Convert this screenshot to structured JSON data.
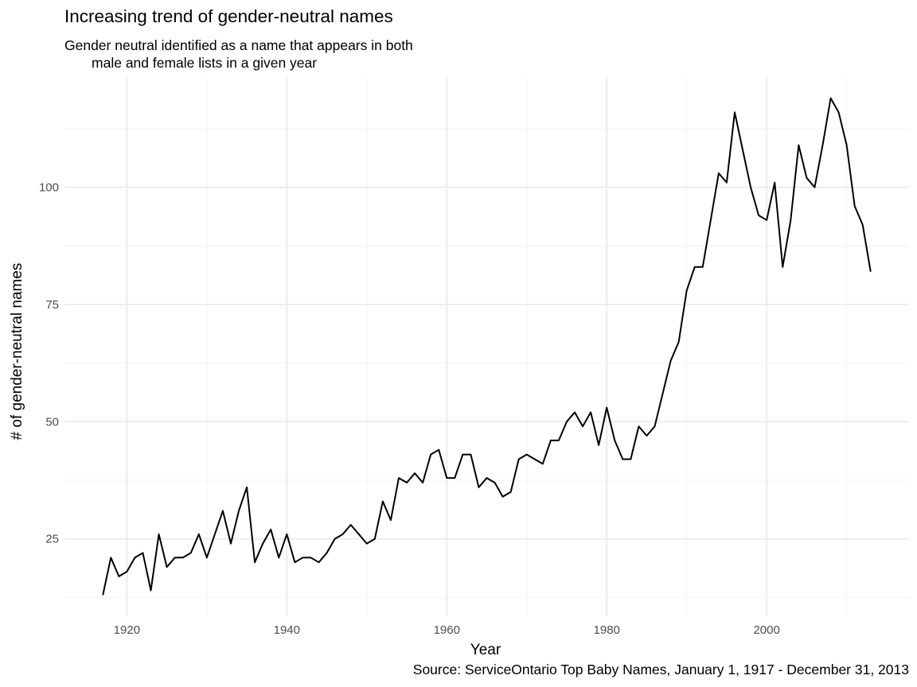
{
  "chart_data": {
    "type": "line",
    "title": "Increasing trend of gender-neutral names",
    "subtitle": "Gender neutral identified as a name that appears in both\n       male and female lists in a given year",
    "caption": "Source: ServiceOntario Top Baby Names, January 1, 1917 - December 31, 2013",
    "xlabel": "Year",
    "ylabel": "# of gender-neutral names",
    "xlim": [
      1912.2,
      2017.8
    ],
    "ylim": [
      8.5,
      123.5
    ],
    "x_ticks": [
      1920,
      1940,
      1960,
      1980,
      2000
    ],
    "y_ticks": [
      25,
      50,
      75,
      100
    ],
    "x_minor": [
      1930,
      1950,
      1970,
      1990,
      2010
    ],
    "y_minor": [
      12.5,
      37.5,
      62.5,
      87.5,
      112.5
    ],
    "grid": true,
    "legend": "none",
    "line_color": "#000000",
    "x": [
      1917,
      1918,
      1919,
      1920,
      1921,
      1922,
      1923,
      1924,
      1925,
      1926,
      1927,
      1928,
      1929,
      1930,
      1931,
      1932,
      1933,
      1934,
      1935,
      1936,
      1937,
      1938,
      1939,
      1940,
      1941,
      1942,
      1943,
      1944,
      1945,
      1946,
      1947,
      1948,
      1949,
      1950,
      1951,
      1952,
      1953,
      1954,
      1955,
      1956,
      1957,
      1958,
      1959,
      1960,
      1961,
      1962,
      1963,
      1964,
      1965,
      1966,
      1967,
      1968,
      1969,
      1970,
      1971,
      1972,
      1973,
      1974,
      1975,
      1976,
      1977,
      1978,
      1979,
      1980,
      1981,
      1982,
      1983,
      1984,
      1985,
      1986,
      1987,
      1988,
      1989,
      1990,
      1991,
      1992,
      1993,
      1994,
      1995,
      1996,
      1997,
      1998,
      1999,
      2000,
      2001,
      2002,
      2003,
      2004,
      2005,
      2006,
      2007,
      2008,
      2009,
      2010,
      2011,
      2012,
      2013
    ],
    "y": [
      13,
      21,
      17,
      18,
      21,
      22,
      14,
      26,
      19,
      21,
      21,
      22,
      26,
      21,
      26,
      31,
      24,
      31,
      36,
      20,
      24,
      27,
      21,
      26,
      20,
      21,
      21,
      20,
      22,
      25,
      26,
      28,
      26,
      24,
      25,
      33,
      29,
      38,
      37,
      39,
      37,
      43,
      44,
      38,
      38,
      43,
      43,
      36,
      38,
      37,
      34,
      35,
      42,
      43,
      42,
      41,
      46,
      46,
      50,
      52,
      49,
      52,
      45,
      53,
      46,
      42,
      42,
      49,
      47,
      49,
      56,
      63,
      67,
      78,
      83,
      83,
      93,
      103,
      101,
      116,
      108,
      100,
      94,
      93,
      101,
      83,
      93,
      109,
      102,
      100,
      109,
      119,
      116,
      109,
      96,
      92,
      82
    ]
  }
}
